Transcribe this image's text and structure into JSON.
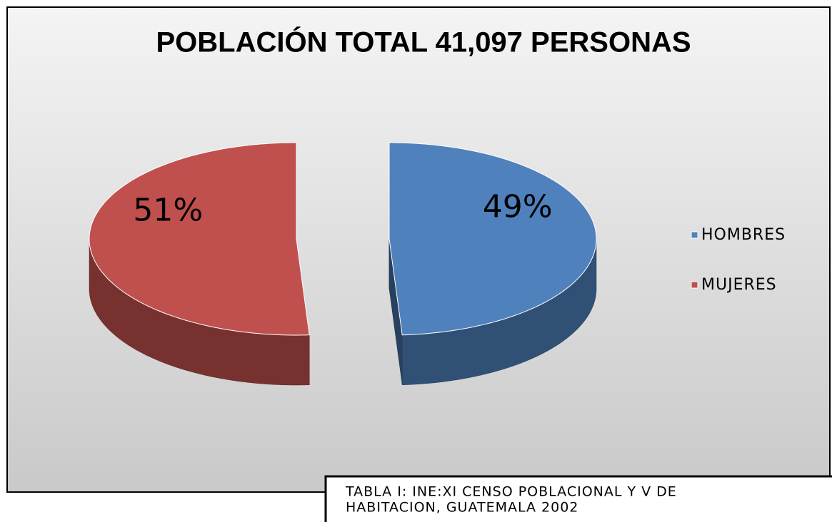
{
  "chart_data": {
    "type": "pie",
    "title": "POBLACIÓN TOTAL 41,097 PERSONAS",
    "categories": [
      "HOMBRES",
      "MUJERES"
    ],
    "values": [
      49,
      51
    ],
    "value_labels": [
      "49%",
      "51%"
    ],
    "colors": [
      "#4f81bd",
      "#c0504d"
    ],
    "legend": "right",
    "source": [
      "TABLA I: INE:XI CENSO POBLACIONAL Y V DE",
      "HABITACION, GUATEMALA 2002"
    ]
  }
}
